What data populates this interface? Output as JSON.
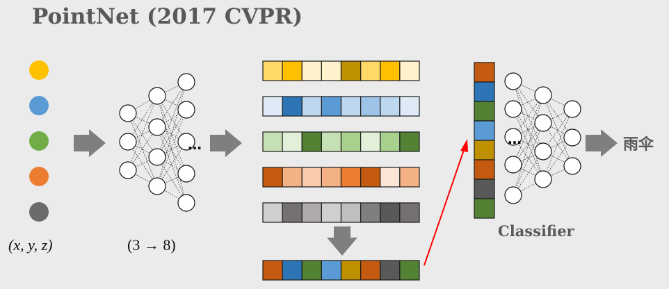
{
  "title": "PointNet (2017 CVPR)",
  "input_points": {
    "colors": [
      "#ffc000",
      "#5b9bd5",
      "#70ad47",
      "#ed7d31",
      "#6b6b6b"
    ],
    "label": "(x, y, z)"
  },
  "mlp": {
    "label": "(3 → 8)",
    "ellipsis": "…"
  },
  "feature_rows": [
    [
      "#ffd966",
      "#ffc000",
      "#fff2cc",
      "#fff2cc",
      "#bf9000",
      "#ffd966",
      "#ffc000",
      "#fff2cc"
    ],
    [
      "#deebf7",
      "#2e75b6",
      "#bdd7ee",
      "#5b9bd5",
      "#bdd7ee",
      "#9dc3e6",
      "#bdd7ee",
      "#deebf7"
    ],
    [
      "#c5e0b4",
      "#e2f0d9",
      "#548235",
      "#c5e0b4",
      "#a9d18e",
      "#e2f0d9",
      "#a9d18e",
      "#548235"
    ],
    [
      "#c55a11",
      "#f4b183",
      "#f8cbad",
      "#f4b183",
      "#ed7d31",
      "#c55a11",
      "#fbe5d6",
      "#f4b183"
    ],
    [
      "#d0cece",
      "#767171",
      "#aeaaaa",
      "#d0cece",
      "#bfbfbf",
      "#7f7f7f",
      "#595959",
      "#767171"
    ]
  ],
  "global_feature": [
    "#c55a11",
    "#2e75b6",
    "#548235",
    "#5b9bd5",
    "#bf9000",
    "#c55a11",
    "#595959",
    "#548235"
  ],
  "classifier": {
    "label": "Classifier",
    "ellipsis": "…",
    "output_label": "雨伞"
  },
  "colors": {
    "arrow": "#7f7f7f",
    "red_arrow": "#ff0000",
    "cell_border": "#1a1a1a"
  }
}
